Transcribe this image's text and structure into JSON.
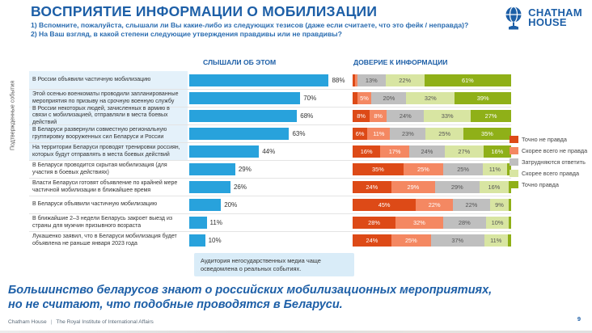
{
  "header": {
    "title": "ВОСПРИЯТИЕ ИНФОРМАЦИИ О МОБИЛИЗАЦИИ",
    "subtitle1": "1) Вспомните, пожалуйста, слышали ли Вы какие-либо из следующих тезисов (даже если считаете, что это фейк / неправда)?",
    "subtitle2": "2) На Ваш взгляд, в какой степени следующие утверждения правдивы или не правдивы?",
    "logo_line1": "CHATHAM",
    "logo_line2": "HOUSE"
  },
  "columns": {
    "heard": "СЛЫШАЛИ ОБ ЭТОМ",
    "trust": "ДОВЕРИЕ К ИНФОРМАЦИИ"
  },
  "group_label": "Подтвержденные события",
  "note": "Аудитория негосударственных медиа чаще осведомлена о реальных событиях.",
  "legend": [
    {
      "label": "Точно не правда",
      "color": "#dd4a17"
    },
    {
      "label": "Скорее всего не правда",
      "color": "#f48862"
    },
    {
      "label": "Затрудняются ответить",
      "color": "#bfbfbf"
    },
    {
      "label": "Скорее всего правда",
      "color": "#d8e5a2"
    },
    {
      "label": "Точно правда",
      "color": "#8fb018"
    }
  ],
  "chart_data": {
    "type": "bar",
    "layout": "paired horizontal bars: single series (heard) + 100% stacked bars (trust)",
    "xlim": [
      0,
      100
    ],
    "legend_position": "right",
    "trust_keys": [
      "Точно не правда",
      "Скорее всего не правда",
      "Затрудняются ответить",
      "Скорее всего правда",
      "Точно правда"
    ],
    "label_threshold_pct": 5,
    "rows": [
      {
        "label": "В России объявили частичную мобилизацию",
        "confirmed_event": true,
        "heard_pct": 88,
        "trust": [
          2,
          2,
          13,
          22,
          61
        ]
      },
      {
        "label": "Этой осенью военкоматы проводили запланированные мероприятия по призыву на срочную военную службу",
        "confirmed_event": true,
        "heard_pct": 70,
        "trust": [
          4,
          5,
          20,
          32,
          39
        ]
      },
      {
        "label": "В России некоторых людей, зачисленных в армию в связи с мобилизацией, отправляли в места боевых действий",
        "confirmed_event": true,
        "heard_pct": 68,
        "trust": [
          8,
          8,
          24,
          33,
          27
        ]
      },
      {
        "label": "В Беларуси развернули совместную региональную группировку вооруженных сил Беларуси и России",
        "confirmed_event": true,
        "heard_pct": 63,
        "trust": [
          6,
          11,
          23,
          25,
          35
        ]
      },
      {
        "label": "На территории Беларуси проводят тренировки россиян, которых будут отправлять в места боевых действий",
        "confirmed_event": true,
        "heard_pct": 44,
        "trust": [
          16,
          17,
          24,
          27,
          16
        ]
      },
      {
        "label": "В Беларуси проводится скрытая мобилизация (для участия в боевых действиях)",
        "confirmed_event": false,
        "heard_pct": 29,
        "trust": [
          35,
          25,
          25,
          11,
          4
        ]
      },
      {
        "label": "Власти Беларуси готовят объявление по крайней мере частичной мобилизации в ближайшее время",
        "confirmed_event": false,
        "heard_pct": 26,
        "trust": [
          24,
          29,
          29,
          16,
          2
        ]
      },
      {
        "label": "В Беларуси объявили частичную мобилизацию",
        "confirmed_event": false,
        "heard_pct": 20,
        "trust": [
          45,
          22,
          22,
          9,
          2
        ]
      },
      {
        "label": "В ближайшие 2–3 недели Беларусь закроет выезд из страны для мужчин призывного возраста",
        "confirmed_event": false,
        "heard_pct": 11,
        "trust": [
          28,
          32,
          28,
          10,
          2
        ]
      },
      {
        "label": "Лукашенко заявил, что в Беларуси мобилизация будет объявлена не раньше января 2023 года",
        "confirmed_event": false,
        "heard_pct": 10,
        "trust": [
          24,
          25,
          37,
          11,
          3
        ]
      }
    ]
  },
  "conclusion": {
    "line1": "Большинство беларусов знают о российских мобилизационных мероприятиях,",
    "line2": "но не считают, что подобные проводятся в Беларуси."
  },
  "footer": {
    "org": "Chatham House",
    "divider": "|",
    "institute": "The Royal Institute of International Affairs",
    "page": "9"
  },
  "colors": {
    "title_blue": "#1d5fa7",
    "bar_blue": "#28a2dc",
    "confirmed_bg": "#e4f1fa",
    "note_bg": "#d9ecf8"
  }
}
